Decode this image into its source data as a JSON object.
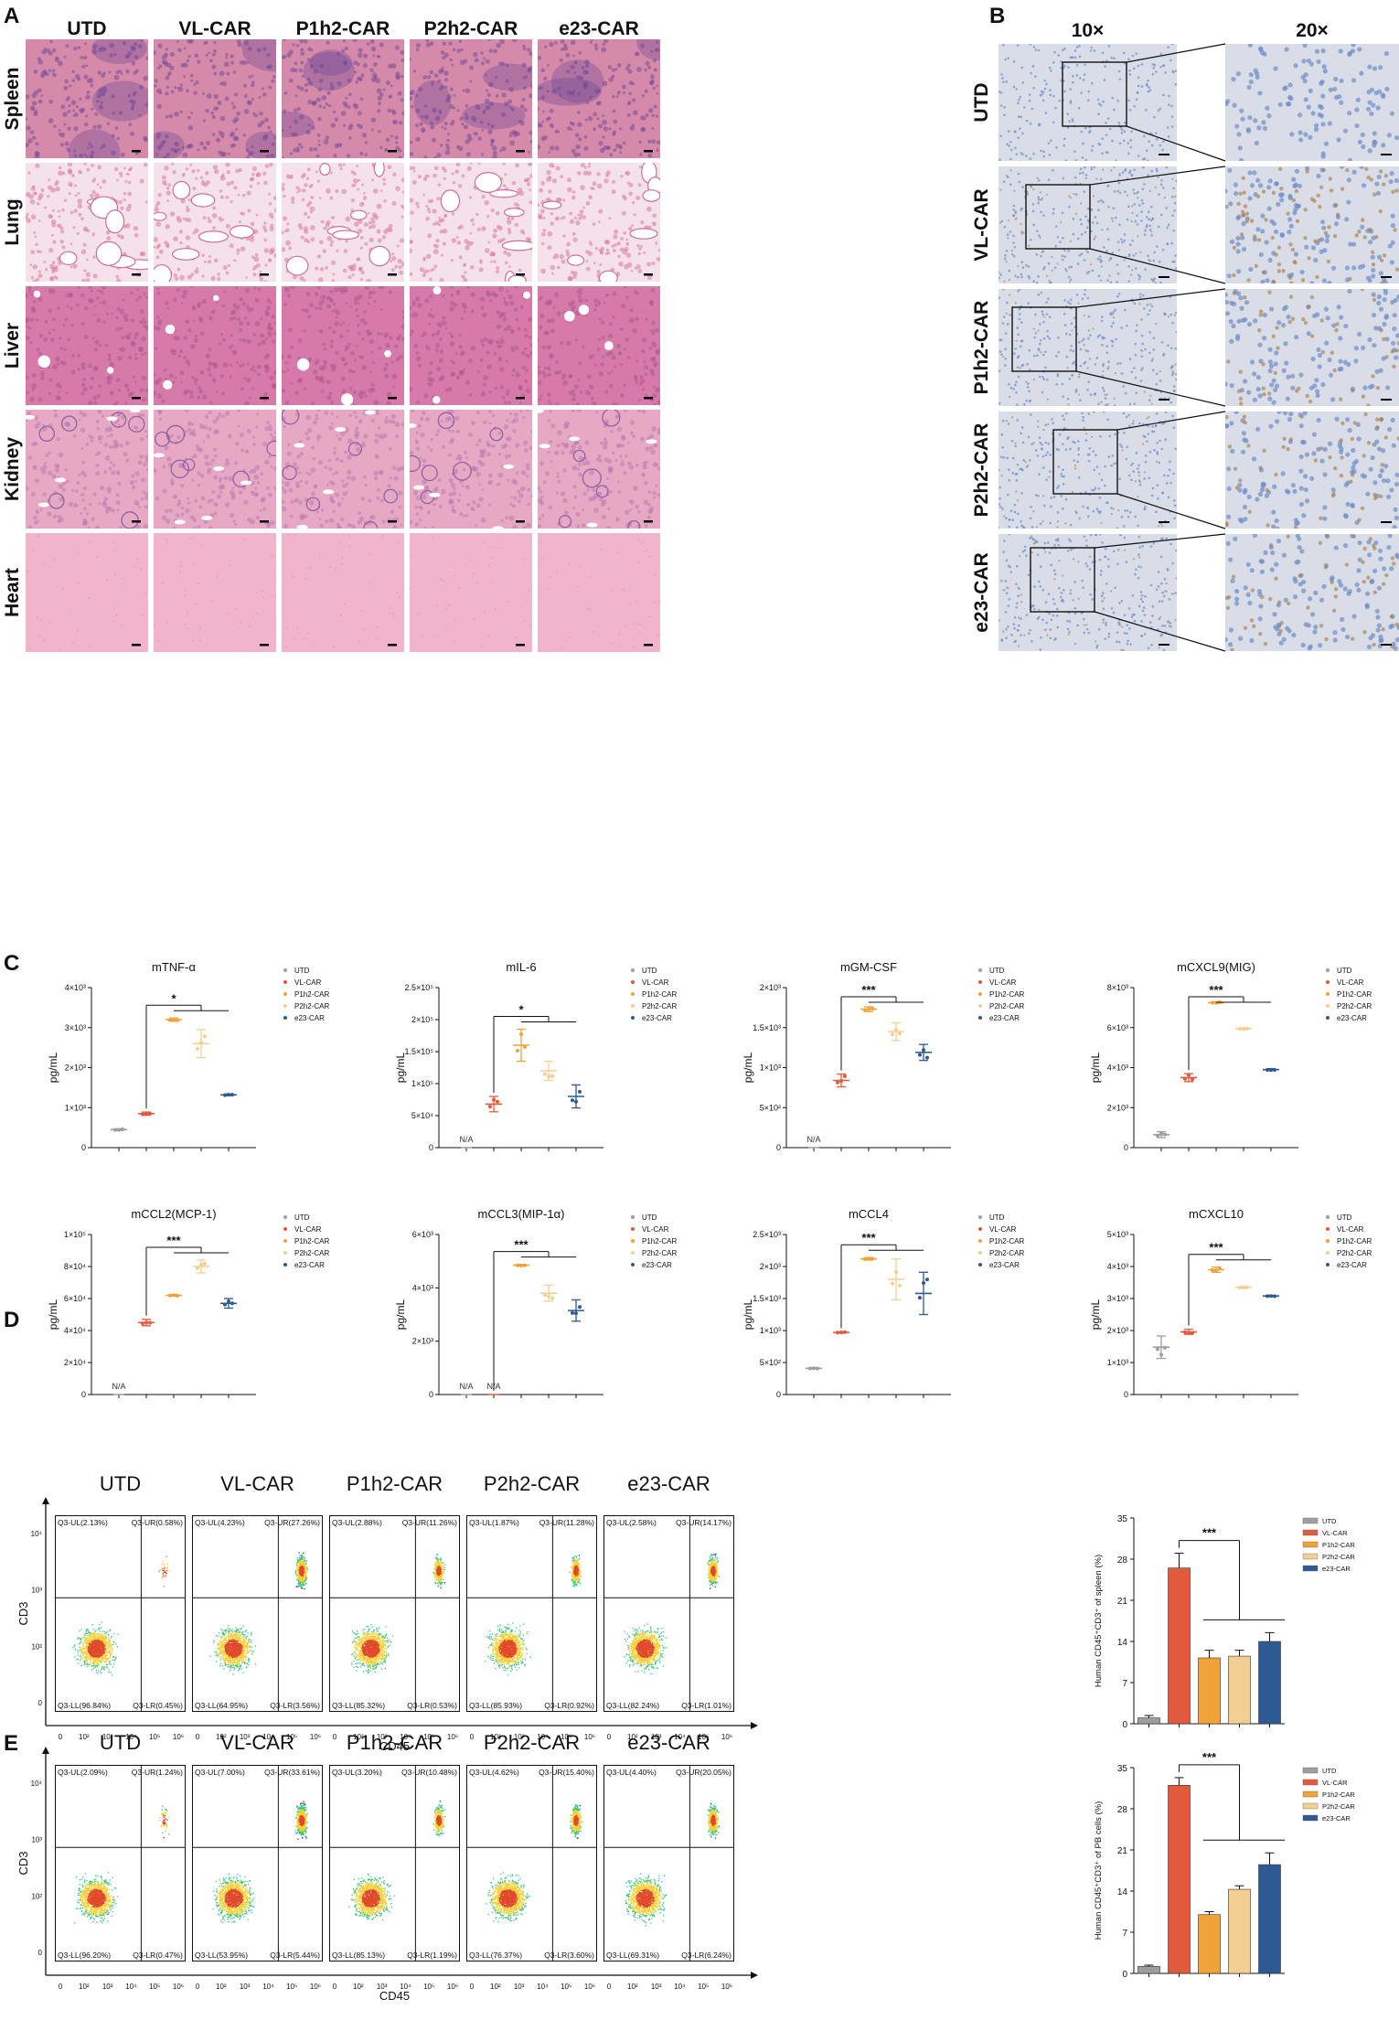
{
  "panels": {
    "A": "A",
    "B": "B",
    "C": "C",
    "D": "D",
    "E": "E"
  },
  "panelA": {
    "columns": [
      "UTD",
      "VL-CAR",
      "P1h2-CAR",
      "P2h2-CAR",
      "e23-CAR"
    ],
    "rows": [
      "Spleen",
      "Lung",
      "Liver",
      "Kidney",
      "Heart"
    ],
    "colors": {
      "Spleen": [
        "#d48aa8",
        "#7a4f98"
      ],
      "Lung": [
        "#f4e1ea",
        "#d87aa1"
      ],
      "Liver": [
        "#d57aa9",
        "#b25790"
      ],
      "Kidney": [
        "#e6a8c3",
        "#b97ab0"
      ],
      "Heart": [
        "#f0b4cb",
        "#e590b3"
      ]
    }
  },
  "panelB": {
    "columns": [
      "10×",
      "20×"
    ],
    "rows": [
      "UTD",
      "VL-CAR",
      "P1h2-CAR",
      "P2h2-CAR",
      "e23-CAR"
    ]
  },
  "chart_data": [
    {
      "type": "scatter",
      "title": "mTNF-α",
      "ylabel": "pg/mL",
      "yticks": [
        "0",
        "1×10³",
        "2×10³",
        "3×10³",
        "4×10³"
      ],
      "ylim": [
        0,
        4000
      ],
      "categories": [
        "UTD",
        "VL-CAR",
        "P1h2-CAR",
        "P2h2-CAR",
        "e23-CAR"
      ],
      "values": [
        450,
        850,
        3200,
        2600,
        1320
      ],
      "errors": [
        20,
        40,
        40,
        350,
        20
      ],
      "na": [
        false,
        false,
        false,
        false,
        false
      ],
      "significance": "*"
    },
    {
      "type": "scatter",
      "title": "mIL-6",
      "ylabel": "pg/mL",
      "yticks": [
        "0",
        "5×10⁴",
        "1×10⁵",
        "1.5×10⁵",
        "2×10⁵",
        "2.5×10⁵"
      ],
      "ylim": [
        0,
        250000
      ],
      "categories": [
        "UTD",
        "VL-CAR",
        "P1h2-CAR",
        "P2h2-CAR",
        "e23-CAR"
      ],
      "values": [
        0,
        68000,
        160000,
        120000,
        80000
      ],
      "errors": [
        0,
        12000,
        25000,
        15000,
        18000
      ],
      "na": [
        true,
        false,
        false,
        false,
        false
      ],
      "significance": "*"
    },
    {
      "type": "scatter",
      "title": "mGM-CSF",
      "ylabel": "pg/mL",
      "yticks": [
        "0",
        "5×10²",
        "1×10³",
        "1.5×10³",
        "2×10³"
      ],
      "ylim": [
        0,
        2000
      ],
      "categories": [
        "UTD",
        "VL-CAR",
        "P1h2-CAR",
        "P2h2-CAR",
        "e23-CAR"
      ],
      "values": [
        0,
        840,
        1730,
        1450,
        1190
      ],
      "errors": [
        0,
        80,
        30,
        110,
        100
      ],
      "na": [
        true,
        false,
        false,
        false,
        false
      ],
      "significance": "***"
    },
    {
      "type": "scatter",
      "title": "mCXCL9(MIG)",
      "ylabel": "pg/mL",
      "yticks": [
        "0",
        "2×10³",
        "4×10³",
        "6×10³",
        "8×10³"
      ],
      "ylim": [
        0,
        8000
      ],
      "categories": [
        "UTD",
        "VL-CAR",
        "P1h2-CAR",
        "P2h2-CAR",
        "e23-CAR"
      ],
      "values": [
        650,
        3500,
        7250,
        5950,
        3900
      ],
      "errors": [
        150,
        200,
        30,
        40,
        50
      ],
      "na": [
        false,
        false,
        false,
        false,
        false
      ],
      "significance": "***"
    },
    {
      "type": "scatter",
      "title": "mCCL2(MCP-1)",
      "ylabel": "pg/mL",
      "yticks": [
        "0",
        "2×10⁴",
        "4×10⁴",
        "6×10⁴",
        "8×10⁴",
        "1×10⁵"
      ],
      "ylim": [
        0,
        100000
      ],
      "categories": [
        "UTD",
        "VL-CAR",
        "P1h2-CAR",
        "P2h2-CAR",
        "e23-CAR"
      ],
      "values": [
        0,
        45000,
        62000,
        80000,
        57000
      ],
      "errors": [
        0,
        2000,
        500,
        4000,
        3000
      ],
      "na": [
        true,
        false,
        false,
        false,
        false
      ],
      "significance": "***"
    },
    {
      "type": "scatter",
      "title": "mCCL3(MIP-1α)",
      "ylabel": "pg/mL",
      "yticks": [
        "0",
        "2×10³",
        "4×10³",
        "6×10³"
      ],
      "ylim": [
        0,
        6000
      ],
      "categories": [
        "UTD",
        "VL-CAR",
        "P1h2-CAR",
        "P2h2-CAR",
        "e23-CAR"
      ],
      "values": [
        0,
        0,
        4850,
        3800,
        3150
      ],
      "errors": [
        0,
        0,
        30,
        300,
        400
      ],
      "na": [
        true,
        true,
        false,
        false,
        false
      ],
      "significance": "***"
    },
    {
      "type": "scatter",
      "title": "mCCL4",
      "ylabel": "pg/mL",
      "yticks": [
        "0",
        "5×10²",
        "1×10³",
        "1.5×10³",
        "2×10³",
        "2.5×10³"
      ],
      "ylim": [
        0,
        2500
      ],
      "categories": [
        "UTD",
        "VL-CAR",
        "P1h2-CAR",
        "P2h2-CAR",
        "e23-CAR"
      ],
      "values": [
        410,
        970,
        2120,
        1800,
        1580
      ],
      "errors": [
        10,
        10,
        20,
        320,
        330
      ],
      "na": [
        false,
        false,
        false,
        false,
        false
      ],
      "significance": "***"
    },
    {
      "type": "scatter",
      "title": "mCXCL10",
      "ylabel": "pg/mL",
      "yticks": [
        "0",
        "1×10³",
        "2×10³",
        "3×10³",
        "4×10³",
        "5×10³"
      ],
      "ylim": [
        0,
        5000
      ],
      "categories": [
        "UTD",
        "VL-CAR",
        "P1h2-CAR",
        "P2h2-CAR",
        "e23-CAR"
      ],
      "values": [
        1480,
        1960,
        3900,
        3350,
        3080
      ],
      "errors": [
        350,
        80,
        80,
        20,
        20
      ],
      "na": [
        false,
        false,
        false,
        false,
        false
      ],
      "significance": "***"
    }
  ],
  "legend": {
    "labels": [
      "UTD",
      "VL-CAR",
      "P1h2-CAR",
      "P2h2-CAR",
      "e23-CAR"
    ],
    "colors": [
      "#9e9e9e",
      "#e05a3c",
      "#f1a238",
      "#f3cf94",
      "#2d5a92"
    ]
  },
  "na_label": "N/A",
  "flow": {
    "xaxis_label": "CD45",
    "yaxis_label": "CD3",
    "xticks": [
      "0",
      "10²",
      "10³",
      "10⁴",
      "10⁵",
      "10⁶"
    ],
    "yticks": [
      "0",
      "10²",
      "10³",
      "10⁴"
    ],
    "D": {
      "titles": [
        "UTD",
        "VL-CAR",
        "P1h2-CAR",
        "P2h2-CAR",
        "e23-CAR"
      ],
      "quadrants": [
        {
          "UL": "Q3-UL(2.13%)",
          "UR": "Q3-UR(0.58%)",
          "LL": "Q3-LL(96.84%)",
          "LR": "Q3-LR(0.45%)"
        },
        {
          "UL": "Q3-UL(4.23%)",
          "UR": "Q3-UR(27.26%)",
          "LL": "Q3-LL(64.95%)",
          "LR": "Q3-LR(3.56%)"
        },
        {
          "UL": "Q3-UL(2.88%)",
          "UR": "Q3-UR(11.26%)",
          "LL": "Q3-LL(85.32%)",
          "LR": "Q3-LR(0.53%)"
        },
        {
          "UL": "Q3-UL(1.87%)",
          "UR": "Q3-UR(11.28%)",
          "LL": "Q3-LL(85.93%)",
          "LR": "Q3-LR(0.92%)"
        },
        {
          "UL": "Q3-UL(2.58%)",
          "UR": "Q3-UR(14.17%)",
          "LL": "Q3-LL(82.24%)",
          "LR": "Q3-LR(1.01%)"
        }
      ]
    },
    "E": {
      "titles": [
        "UTD",
        "VL-CAR",
        "P1h2-CAR",
        "P2h2-CAR",
        "e23-CAR"
      ],
      "quadrants": [
        {
          "UL": "Q3-UL(2.09%)",
          "UR": "Q3-UR(1.24%)",
          "LL": "Q3-LL(96.20%)",
          "LR": "Q3-LR(0.47%)"
        },
        {
          "UL": "Q3-UL(7.00%)",
          "UR": "Q3-UR(33.61%)",
          "LL": "Q3-LL(53.95%)",
          "LR": "Q3-LR(5.44%)"
        },
        {
          "UL": "Q3-UL(3.20%)",
          "UR": "Q3-UR(10.48%)",
          "LL": "Q3-LL(85.13%)",
          "LR": "Q3-LR(1.19%)"
        },
        {
          "UL": "Q3-UL(4.62%)",
          "UR": "Q3-UR(15.40%)",
          "LL": "Q3-LL(76.37%)",
          "LR": "Q3-LR(3.60%)"
        },
        {
          "UL": "Q3-UL(4.40%)",
          "UR": "Q3-UR(20.05%)",
          "LL": "Q3-LL(69.31%)",
          "LR": "Q3-LR(6.24%)"
        }
      ]
    }
  },
  "bars": {
    "D": {
      "ylabel": "Human CD45⁺CD3⁺ of spleen (%)",
      "yticks": [
        "0",
        "7",
        "14",
        "21",
        "28",
        "35"
      ],
      "ylim": [
        0,
        35
      ],
      "values": [
        1.0,
        26.5,
        11.2,
        11.5,
        14.0
      ],
      "errors": [
        0.4,
        2.5,
        1.3,
        1.0,
        1.5
      ],
      "significance": "***"
    },
    "E": {
      "ylabel": "Human CD45⁺CD3⁺ of PB cells (%)",
      "yticks": [
        "0",
        "7",
        "14",
        "21",
        "28",
        "35"
      ],
      "ylim": [
        0,
        35
      ],
      "values": [
        1.2,
        32.0,
        10.0,
        14.3,
        18.5
      ],
      "errors": [
        0.2,
        1.3,
        0.5,
        0.6,
        2.0
      ],
      "significance": "***"
    }
  }
}
